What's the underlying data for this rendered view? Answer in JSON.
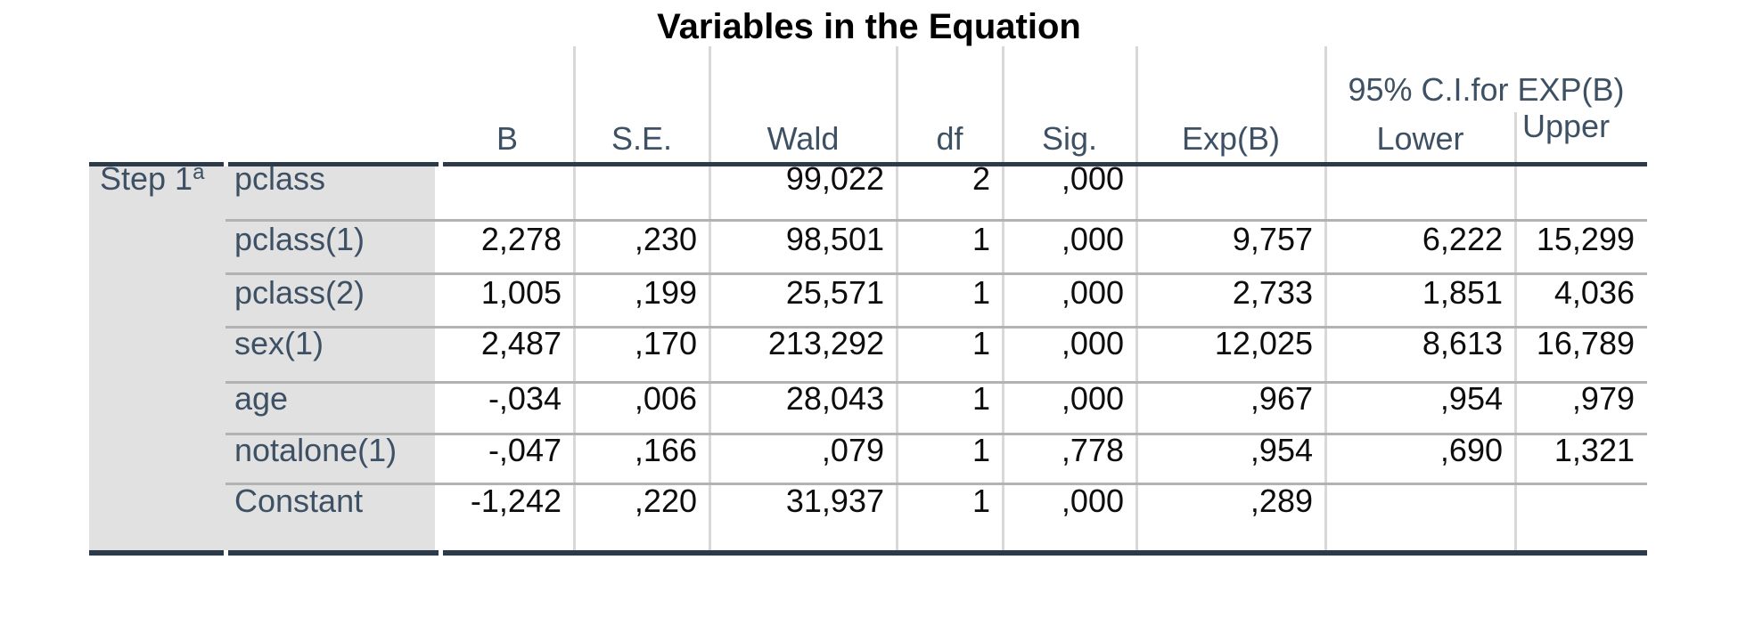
{
  "chart_data": {
    "type": "table",
    "title": "Variables in the Equation",
    "step_label": "Step 1",
    "step_footnote_marker": "a",
    "column_group_header": "95% C.I.for EXP(B)",
    "columns": [
      "B",
      "S.E.",
      "Wald",
      "df",
      "Sig.",
      "Exp(B)",
      "Lower",
      "Upper"
    ],
    "rows": [
      {
        "variable": "pclass",
        "values": [
          "",
          "",
          "99,022",
          "2",
          ",000",
          "",
          "",
          ""
        ]
      },
      {
        "variable": "pclass(1)",
        "values": [
          "2,278",
          ",230",
          "98,501",
          "1",
          ",000",
          "9,757",
          "6,222",
          "15,299"
        ]
      },
      {
        "variable": "pclass(2)",
        "values": [
          "1,005",
          ",199",
          "25,571",
          "1",
          ",000",
          "2,733",
          "1,851",
          "4,036"
        ]
      },
      {
        "variable": "sex(1)",
        "values": [
          "2,487",
          ",170",
          "213,292",
          "1",
          ",000",
          "12,025",
          "8,613",
          "16,789"
        ]
      },
      {
        "variable": "age",
        "values": [
          "-,034",
          ",006",
          "28,043",
          "1",
          ",000",
          ",967",
          ",954",
          ",979"
        ]
      },
      {
        "variable": "notalone(1)",
        "values": [
          "-,047",
          ",166",
          ",079",
          "1",
          ",778",
          ",954",
          ",690",
          "1,321"
        ]
      },
      {
        "variable": "Constant",
        "values": [
          "-1,242",
          ",220",
          "31,937",
          "1",
          ",000",
          ",289",
          "",
          ""
        ]
      }
    ]
  },
  "colors": {
    "label_text": "#3d5064",
    "data_text": "#0d0d0d",
    "thick_border": "#2d3a49",
    "row_separator": "#b2b2b2",
    "column_separator": "#d8d8d8",
    "row_header_background": "#e1e1e1"
  }
}
